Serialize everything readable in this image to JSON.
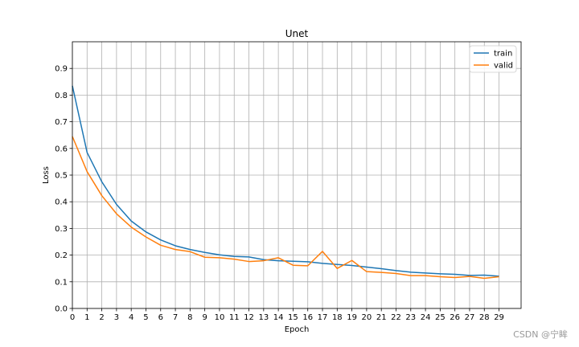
{
  "chart_data": {
    "type": "line",
    "title": "Unet",
    "xlabel": "Epoch",
    "ylabel": "Loss",
    "x": [
      0,
      1,
      2,
      3,
      4,
      5,
      6,
      7,
      8,
      9,
      10,
      11,
      12,
      13,
      14,
      15,
      16,
      17,
      18,
      19,
      20,
      21,
      22,
      23,
      24,
      25,
      26,
      27,
      28,
      29
    ],
    "xlim": [
      0,
      30.5
    ],
    "ylim": [
      0,
      1.0
    ],
    "yticks": [
      0.0,
      0.1,
      0.2,
      0.3,
      0.4,
      0.5,
      0.6,
      0.7,
      0.8,
      0.9
    ],
    "ytick_labels": [
      "0.0",
      "0.1",
      "0.2",
      "0.3",
      "0.4",
      "0.5",
      "0.6",
      "0.7",
      "0.8",
      "0.9"
    ],
    "xtick_labels": [
      "0",
      "1",
      "2",
      "3",
      "4",
      "5",
      "6",
      "7",
      "8",
      "9",
      "10",
      "11",
      "12",
      "13",
      "14",
      "15",
      "16",
      "17",
      "18",
      "19",
      "20",
      "21",
      "22",
      "23",
      "24",
      "25",
      "26",
      "27",
      "28",
      "29"
    ],
    "grid": true,
    "legend_position": "top-right",
    "series": [
      {
        "name": "train",
        "color": "#1f77b4",
        "values": [
          0.835,
          0.585,
          0.475,
          0.39,
          0.328,
          0.287,
          0.257,
          0.235,
          0.221,
          0.21,
          0.201,
          0.195,
          0.193,
          0.183,
          0.179,
          0.177,
          0.175,
          0.169,
          0.165,
          0.161,
          0.155,
          0.149,
          0.142,
          0.136,
          0.133,
          0.13,
          0.128,
          0.124,
          0.125,
          0.121
        ]
      },
      {
        "name": "valid",
        "color": "#ff7f0e",
        "values": [
          0.645,
          0.513,
          0.423,
          0.355,
          0.305,
          0.268,
          0.237,
          0.221,
          0.213,
          0.192,
          0.19,
          0.185,
          0.176,
          0.179,
          0.19,
          0.162,
          0.16,
          0.214,
          0.15,
          0.18,
          0.138,
          0.135,
          0.131,
          0.123,
          0.123,
          0.119,
          0.116,
          0.12,
          0.113,
          0.119
        ]
      }
    ]
  },
  "watermark": "CSDN @宁眸"
}
